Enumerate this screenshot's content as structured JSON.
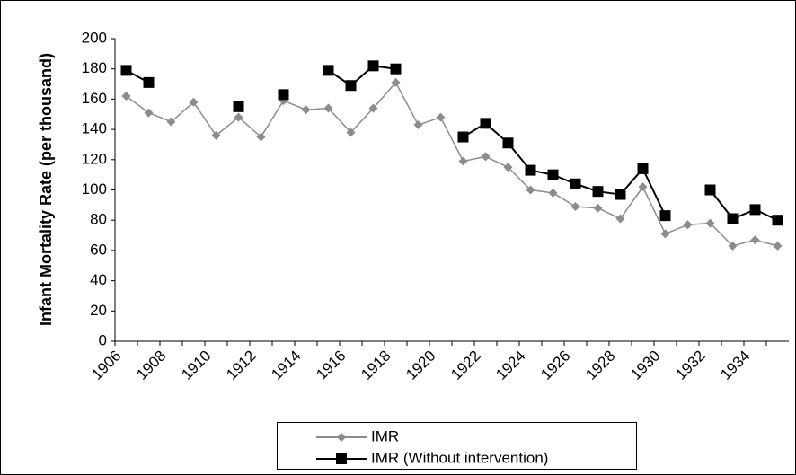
{
  "chart_data": {
    "type": "line",
    "y_label": "Infant Mortality Rate (per thousand)",
    "categories": [
      "1906",
      null,
      "1908",
      null,
      "1910",
      null,
      "1912",
      null,
      "1914",
      null,
      "1916",
      null,
      "1918",
      null,
      "1920",
      null,
      "1922",
      null,
      "1924",
      null,
      "1926",
      null,
      "1928",
      null,
      "1930",
      null,
      "1932",
      null,
      "1934",
      null
    ],
    "series": [
      {
        "name": "IMR",
        "color": "#8c8c8c",
        "marker": "diamond",
        "values": [
          162,
          151,
          145,
          158,
          136,
          148,
          135,
          159,
          153,
          154,
          138,
          154,
          171,
          143,
          148,
          119,
          122,
          115,
          100,
          98,
          89,
          88,
          81,
          102,
          71,
          77,
          78,
          63,
          67,
          63
        ]
      },
      {
        "name": "IMR (Without intervention)",
        "color": "#000000",
        "marker": "square",
        "values": [
          179,
          171,
          null,
          null,
          null,
          155,
          null,
          163,
          null,
          179,
          169,
          182,
          180,
          null,
          null,
          135,
          144,
          131,
          113,
          110,
          104,
          99,
          97,
          114,
          83,
          null,
          100,
          81,
          87,
          80
        ]
      }
    ],
    "ylim": [
      0,
      200
    ],
    "yticks": [
      0,
      20,
      40,
      60,
      80,
      100,
      120,
      140,
      160,
      180,
      200
    ]
  }
}
